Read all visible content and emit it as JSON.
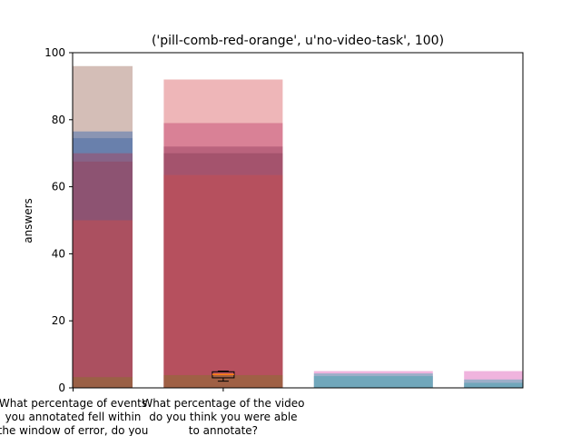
{
  "chart_data": {
    "type": "bar",
    "title": "('pill-comb-red-orange', u'no-video-task', 100)",
    "ylabel": "answers",
    "ylim": [
      0,
      100
    ],
    "yticks": [
      0,
      20,
      40,
      60,
      80,
      100
    ],
    "grid": false,
    "categories": [
      "What percentage of events\nyou annotated fell within\nthe window of error, do you",
      "What percentage of the video\ndo you think you were able\nto annotate?",
      "",
      ""
    ],
    "series": [
      {
        "color": "#b0897c",
        "values": [
          96,
          0,
          0,
          0
        ]
      },
      {
        "color": "#4c72b0",
        "values": [
          76.5,
          0,
          0,
          0
        ]
      },
      {
        "color": "#4f6fa6",
        "values": [
          74.5,
          0,
          0,
          0
        ]
      },
      {
        "color": "#e07a7e",
        "values": [
          0,
          92,
          0,
          0
        ]
      },
      {
        "color": "#c8557a",
        "values": [
          0,
          79,
          0,
          0
        ]
      },
      {
        "color": "#a14a6a",
        "values": [
          70,
          72,
          0,
          0
        ]
      },
      {
        "color": "#914761",
        "values": [
          67.5,
          70,
          0,
          0
        ]
      },
      {
        "color": "#c44e52",
        "values": [
          50,
          63.5,
          0,
          0
        ]
      },
      {
        "color": "#e377c2",
        "values": [
          0,
          0,
          5,
          5
        ]
      },
      {
        "color": "#5aa9b7",
        "values": [
          0,
          0,
          4.3,
          2.5
        ]
      },
      {
        "color": "#4ca3b0",
        "values": [
          0,
          0,
          3.5,
          1.5
        ]
      },
      {
        "color": "#8c6d31",
        "values": [
          3.2,
          3.8,
          0,
          0
        ]
      }
    ],
    "boxplot": {
      "category_index": 1,
      "whisker_low": 2,
      "q1": 3,
      "median": 4,
      "q3": 4.8,
      "whisker_high": 5
    }
  }
}
